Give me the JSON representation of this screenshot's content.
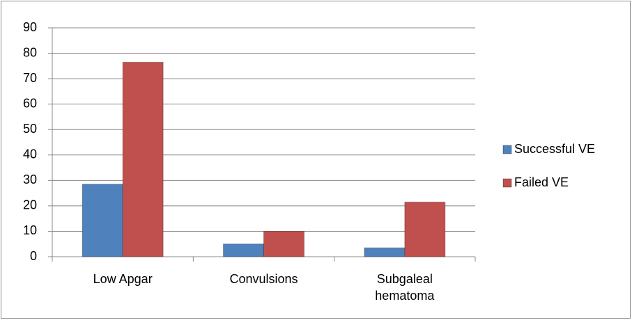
{
  "chart_data": {
    "type": "bar",
    "categories": [
      "Low Apgar",
      "Convulsions",
      "Subgaleal hematoma"
    ],
    "series": [
      {
        "name": "Successful VE",
        "color": "#4f81bd",
        "values": [
          28.5,
          5,
          3.5
        ]
      },
      {
        "name": "Failed VE",
        "color": "#c0504d",
        "values": [
          76.5,
          10,
          21.5
        ]
      }
    ],
    "ylim": [
      0,
      90
    ],
    "yticks": [
      0,
      10,
      20,
      30,
      40,
      50,
      60,
      70,
      80,
      90
    ],
    "grid": true,
    "legend": "right"
  }
}
